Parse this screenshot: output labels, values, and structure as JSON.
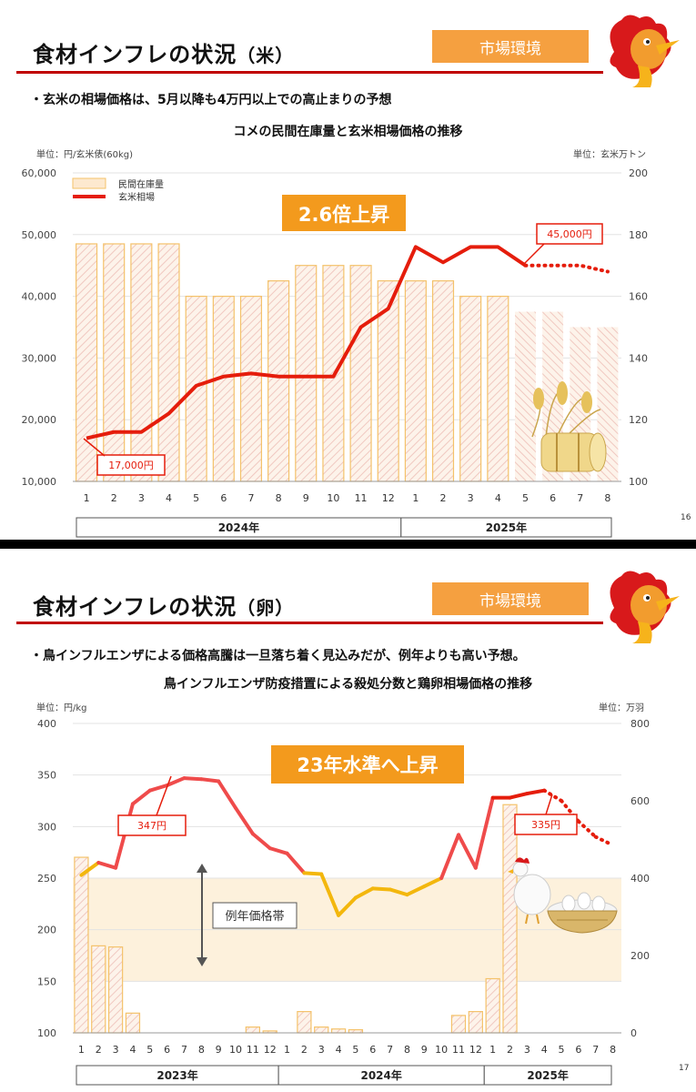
{
  "slide1": {
    "title_main": "食材インフレの状況",
    "title_sub": "（米）",
    "badge": "市場環境",
    "bullet": "・玄米の相場価格は、5月以降も4万円以上での高止まりの予想",
    "chart_title": "コメの民間在庫量と玄米相場価格の推移",
    "unit_left": "単位：円/玄米俵(60kg)",
    "unit_right": "単位：玄米万トン",
    "headline": "2.6倍上昇",
    "callout_low": "17,000円",
    "callout_high": "45,000円",
    "page_number": "16",
    "year_groups": [
      {
        "label": "2024年"
      },
      {
        "label": "2025年"
      }
    ],
    "icon": "rice-straw-bundle-icon"
  },
  "slide2": {
    "title_main": "食材インフレの状況",
    "title_sub": "（卵）",
    "badge": "市場環境",
    "bullet": "・鳥インフルエンザによる価格高騰は一旦落ち着く見込みだが、例年よりも高い予想。",
    "chart_title": "鳥インフルエンザ防疫措置による殺処分数と鶏卵相場価格の推移",
    "unit_left": "単位：円/kg",
    "unit_right": "単位：万羽",
    "headline": "23年水準へ上昇",
    "callout_high1": "347円",
    "callout_high2": "335円",
    "band_label": "例年価格帯",
    "page_number": "17",
    "year_groups": [
      {
        "label": "2023年"
      },
      {
        "label": "2024年"
      },
      {
        "label": "2025年"
      }
    ],
    "icon": "chicken-and-egg-basket-icon"
  },
  "chart_data": [
    {
      "type": "bar",
      "title": "コメの民間在庫量と玄米相場価格の推移",
      "categories": [
        "1",
        "2",
        "3",
        "4",
        "5",
        "6",
        "7",
        "8",
        "9",
        "10",
        "11",
        "12",
        "1",
        "2",
        "3",
        "4",
        "5",
        "6",
        "7",
        "8"
      ],
      "category_groups": [
        {
          "label": "2024年",
          "count": 12
        },
        {
          "label": "2025年",
          "count": 8
        }
      ],
      "ylim_left": [
        10000,
        60000
      ],
      "yticks_left": [
        "10,000",
        "20,000",
        "30,000",
        "40,000",
        "50,000",
        "60,000"
      ],
      "ylim_right": [
        100,
        200
      ],
      "yticks_right": [
        "100",
        "120",
        "140",
        "160",
        "180",
        "200"
      ],
      "legend": [
        "民間在庫量",
        "玄米相場"
      ],
      "legend_position": "top-left",
      "series": [
        {
          "name": "民間在庫量",
          "axis": "right",
          "values": [
            177,
            177,
            177,
            177,
            160,
            160,
            160,
            165,
            170,
            170,
            170,
            165,
            165,
            165,
            160,
            160,
            155,
            155,
            150,
            150
          ],
          "forecast_from": 16
        },
        {
          "name": "玄米相場",
          "axis": "left",
          "values": [
            17000,
            18000,
            18000,
            21000,
            25500,
            27000,
            27500,
            27000,
            27000,
            27000,
            35000,
            38000,
            48000,
            45500,
            48000,
            48000,
            45000,
            45000,
            45000,
            44000
          ],
          "forecast_from": 17
        }
      ],
      "colors": {
        "bar_fill": "#fde9cf",
        "bar_stroke": "#f4c26a",
        "bar_hatch": "#e9a3a3",
        "line": "#e51d0c",
        "forecast": "#e51d0c"
      }
    },
    {
      "type": "bar",
      "title": "鳥インフルエンザ防疫措置による殺処分数と鶏卵相場価格の推移",
      "categories": [
        "1",
        "2",
        "3",
        "4",
        "5",
        "6",
        "7",
        "8",
        "9",
        "10",
        "11",
        "12",
        "1",
        "2",
        "3",
        "4",
        "5",
        "6",
        "7",
        "8",
        "9",
        "10",
        "11",
        "12",
        "1",
        "2",
        "3",
        "4",
        "5",
        "6",
        "7",
        "8"
      ],
      "category_groups": [
        {
          "label": "2023年",
          "count": 12
        },
        {
          "label": "2024年",
          "count": 12
        },
        {
          "label": "2025年",
          "count": 8
        }
      ],
      "ylim_left": [
        100,
        400
      ],
      "yticks_left": [
        "100",
        "150",
        "200",
        "250",
        "300",
        "350",
        "400"
      ],
      "ylim_right": [
        0,
        800
      ],
      "yticks_right": [
        "0",
        "200",
        "400",
        "600",
        "800"
      ],
      "series": [
        {
          "name": "殺処分数",
          "axis": "right",
          "values": [
            454,
            225,
            222,
            51,
            0,
            0,
            0,
            0,
            0,
            0,
            15,
            5,
            0,
            55,
            15,
            10,
            8,
            0,
            0,
            0,
            0,
            0,
            45,
            55,
            140,
            590,
            null,
            null,
            null,
            null,
            null,
            null
          ]
        },
        {
          "name": "鶏卵相場",
          "axis": "left",
          "values": [
            253,
            265,
            260,
            322,
            335,
            340,
            347,
            346,
            344,
            318,
            293,
            279,
            274,
            255,
            254,
            214,
            231,
            240,
            239,
            234,
            242,
            250,
            292,
            260,
            328,
            328,
            332,
            335,
            325,
            305,
            290,
            282
          ],
          "forecast_from": 28
        }
      ],
      "typical_band": [
        150,
        250
      ],
      "colors": {
        "bar_fill": "#fde9cf",
        "bar_stroke": "#f4c26a",
        "bar_hatch": "#e9a3a3",
        "line_high": "#ef4b4b",
        "line_mid": "#f3b70d",
        "forecast": "#e51d0c",
        "band": "#fdf1dc"
      }
    }
  ]
}
